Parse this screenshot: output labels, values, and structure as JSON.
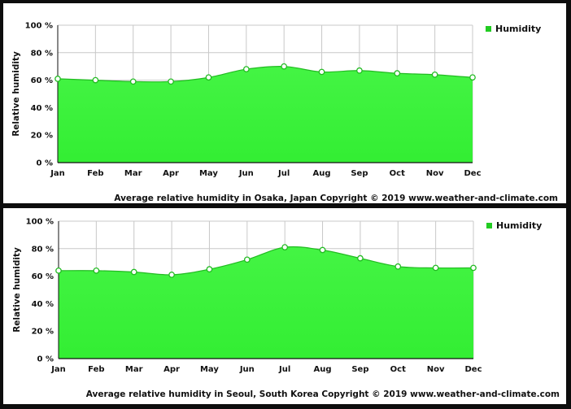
{
  "colors": {
    "area_fill": "#33ee33",
    "area_fill_top": "#44f444",
    "line": "#22bb22",
    "point_fill": "#ffffff",
    "grid": "#c8c8c8",
    "legend_marker": "#22cc22"
  },
  "chart_data": [
    {
      "type": "area",
      "ylabel": "Relative humidity",
      "y_tick_labels": [
        "0 %",
        "20 %",
        "40 %",
        "60 %",
        "80 %",
        "100 %"
      ],
      "y_ticks": [
        0,
        20,
        40,
        60,
        80,
        100
      ],
      "ylim": [
        0,
        100
      ],
      "grid": true,
      "legend_position": "top-right",
      "categories": [
        "Jan",
        "Feb",
        "Mar",
        "Apr",
        "May",
        "Jun",
        "Jul",
        "Aug",
        "Sep",
        "Oct",
        "Nov",
        "Dec"
      ],
      "series": [
        {
          "name": "Humidity",
          "values": [
            61,
            60,
            59,
            59,
            62,
            68,
            70,
            66,
            67,
            65,
            64,
            62
          ]
        }
      ],
      "caption": "Average relative humidity in Osaka, Japan   Copyright © 2019 www.weather-and-climate.com"
    },
    {
      "type": "area",
      "ylabel": "Relative humidity",
      "y_tick_labels": [
        "0 %",
        "20 %",
        "40 %",
        "60 %",
        "80 %",
        "100 %"
      ],
      "y_ticks": [
        0,
        20,
        40,
        60,
        80,
        100
      ],
      "ylim": [
        0,
        100
      ],
      "grid": true,
      "legend_position": "top-right",
      "categories": [
        "Jan",
        "Feb",
        "Mar",
        "Apr",
        "May",
        "Jun",
        "Jul",
        "Aug",
        "Sep",
        "Oct",
        "Nov",
        "Dec"
      ],
      "series": [
        {
          "name": "Humidity",
          "values": [
            64,
            64,
            63,
            61,
            65,
            72,
            81,
            79,
            73,
            67,
            66,
            66
          ]
        }
      ],
      "caption": "Average relative humidity in Seoul, South Korea   Copyright © 2019 www.weather-and-climate.com"
    }
  ]
}
